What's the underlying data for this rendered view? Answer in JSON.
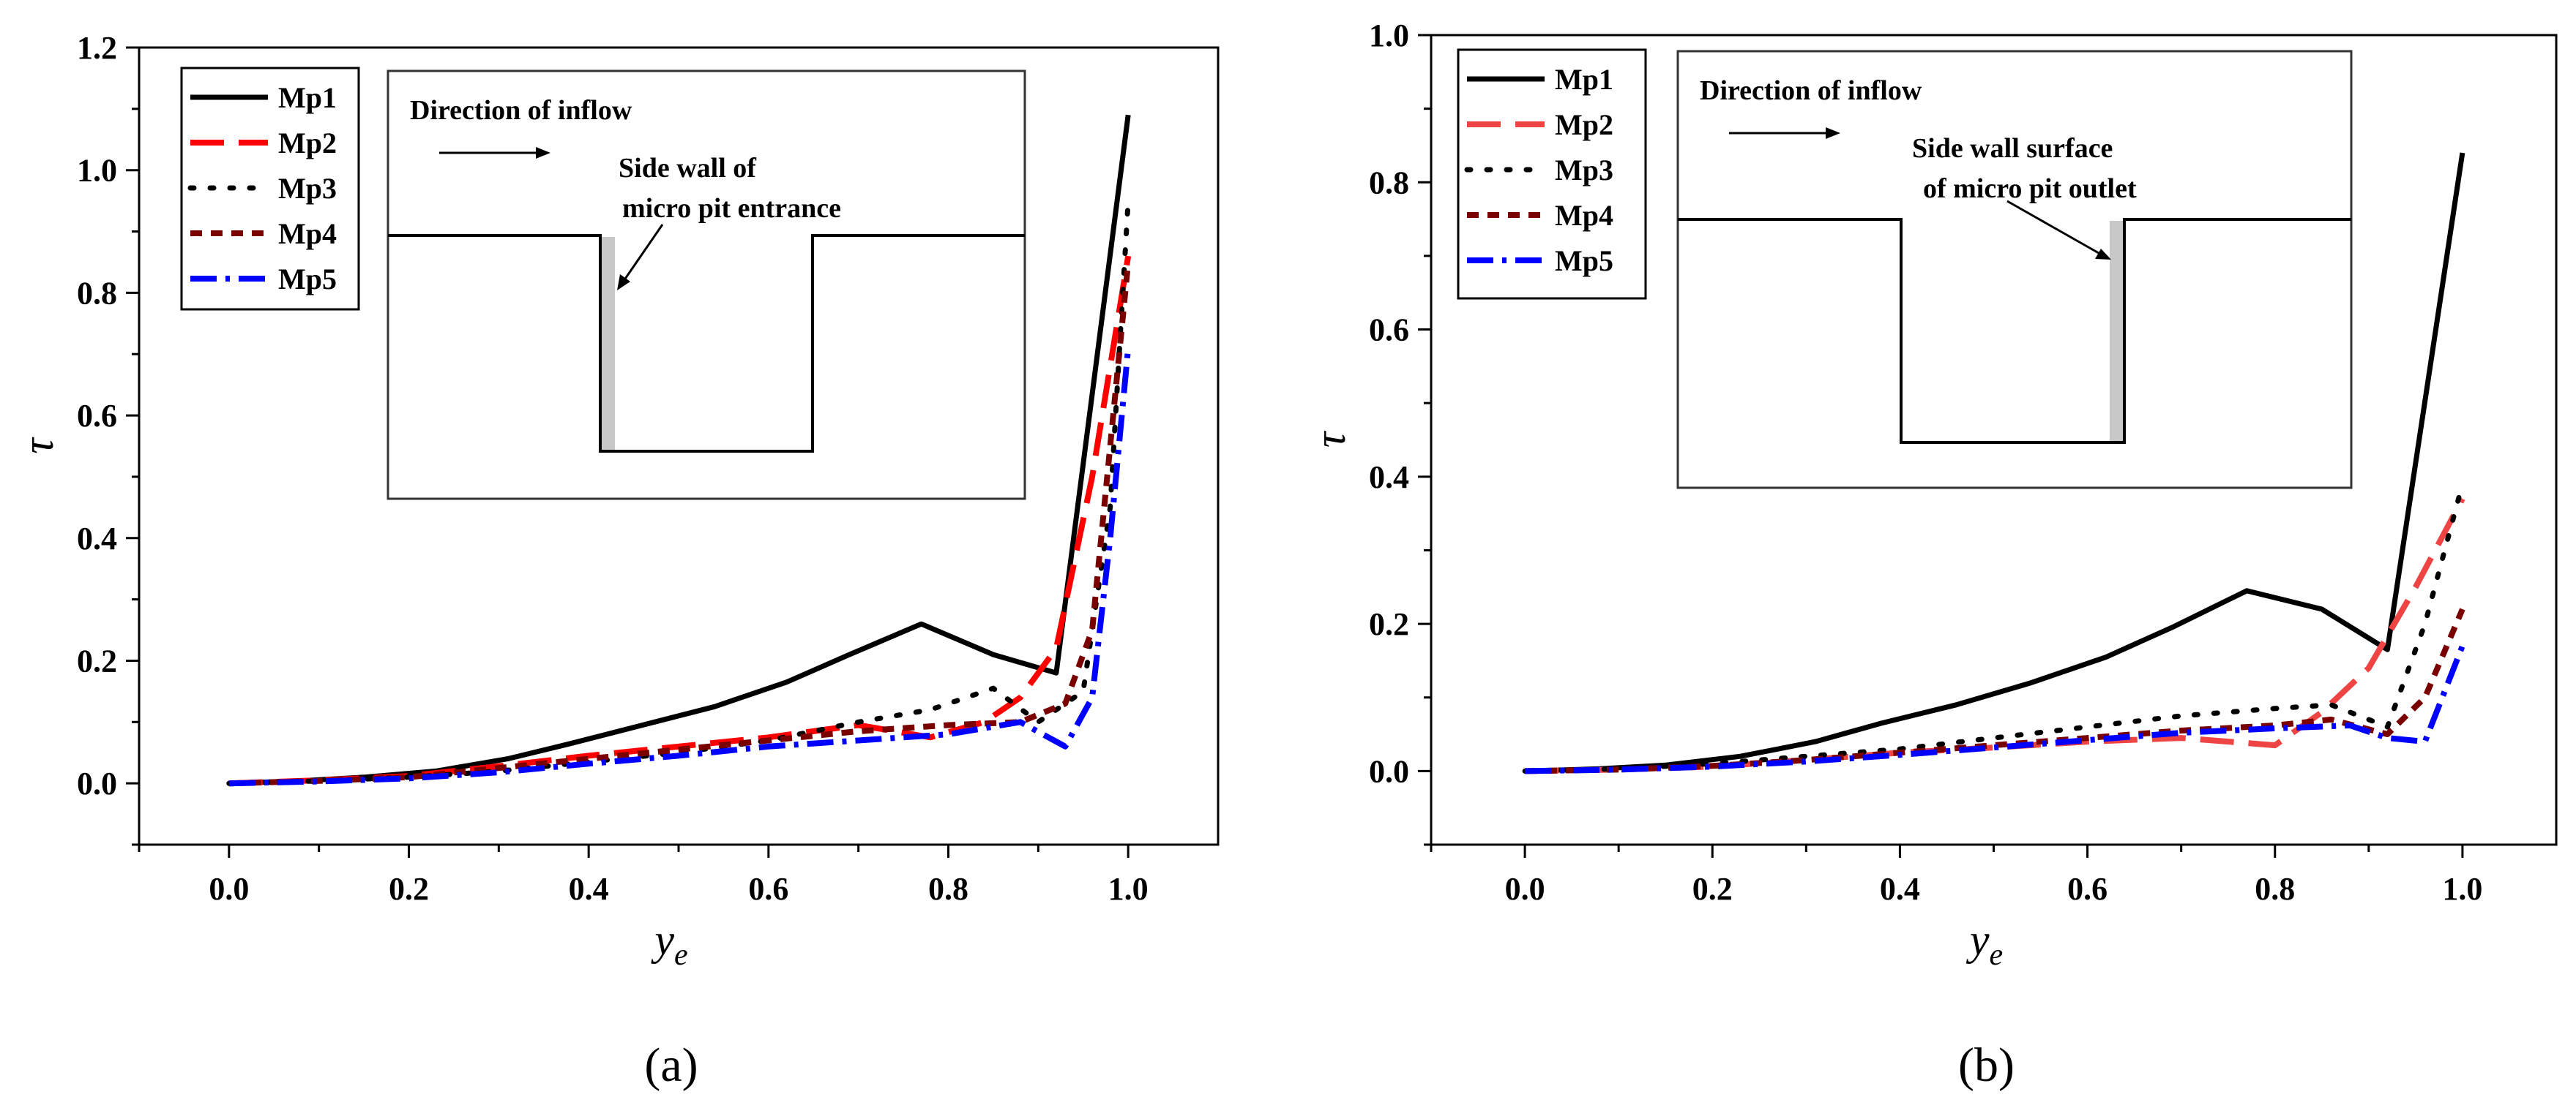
{
  "chart_data": [
    {
      "type": "line",
      "panel_label": "(a)",
      "xlabel": "y",
      "xlabel_sub": "e",
      "ylabel": "τ",
      "xlim": [
        -0.1,
        1.1
      ],
      "ylim": [
        -0.1,
        1.2
      ],
      "xticks": [
        "0.0",
        "0.2",
        "0.4",
        "0.6",
        "0.8",
        "1.0"
      ],
      "yticks": [
        "0.0",
        "0.2",
        "0.4",
        "0.6",
        "0.8",
        "1.0",
        "1.2"
      ],
      "legend_position": "top-left",
      "series": [
        {
          "name": "Mp1",
          "color": "#000000",
          "style": "solid",
          "x": [
            0,
            0.08,
            0.15,
            0.23,
            0.31,
            0.38,
            0.46,
            0.54,
            0.62,
            0.69,
            0.77,
            0.85,
            0.92,
            1.0
          ],
          "y": [
            0.0,
            0.004,
            0.01,
            0.02,
            0.04,
            0.065,
            0.095,
            0.125,
            0.165,
            0.21,
            0.26,
            0.21,
            0.18,
            1.09
          ]
        },
        {
          "name": "Mp2",
          "color": "#ff0000",
          "style": "dash",
          "x": [
            0,
            0.1,
            0.2,
            0.3,
            0.4,
            0.5,
            0.6,
            0.7,
            0.78,
            0.84,
            0.88,
            0.92,
            0.96,
            1.0
          ],
          "y": [
            0.0,
            0.005,
            0.012,
            0.028,
            0.045,
            0.06,
            0.075,
            0.095,
            0.075,
            0.1,
            0.14,
            0.22,
            0.5,
            0.86
          ]
        },
        {
          "name": "Mp3",
          "color": "#000000",
          "style": "dot",
          "x": [
            0,
            0.1,
            0.2,
            0.3,
            0.4,
            0.5,
            0.6,
            0.7,
            0.78,
            0.85,
            0.9,
            0.95,
            0.98,
            1.0
          ],
          "y": [
            0.0,
            0.004,
            0.01,
            0.02,
            0.035,
            0.05,
            0.07,
            0.1,
            0.12,
            0.155,
            0.1,
            0.15,
            0.45,
            0.95
          ]
        },
        {
          "name": "Mp4",
          "color": "#7a0000",
          "style": "shortdash",
          "x": [
            0,
            0.1,
            0.2,
            0.3,
            0.4,
            0.5,
            0.6,
            0.7,
            0.8,
            0.88,
            0.93,
            0.96,
            1.0
          ],
          "y": [
            0.0,
            0.004,
            0.01,
            0.025,
            0.04,
            0.055,
            0.07,
            0.085,
            0.095,
            0.1,
            0.13,
            0.25,
            0.85
          ]
        },
        {
          "name": "Mp5",
          "color": "#0000ff",
          "style": "dashdot",
          "x": [
            0,
            0.1,
            0.2,
            0.3,
            0.4,
            0.5,
            0.6,
            0.7,
            0.8,
            0.88,
            0.93,
            0.96,
            0.98,
            1.0
          ],
          "y": [
            0.0,
            0.003,
            0.008,
            0.018,
            0.032,
            0.045,
            0.06,
            0.07,
            0.08,
            0.1,
            0.06,
            0.14,
            0.4,
            0.71
          ]
        }
      ],
      "inset": {
        "direction_text": "Direction of inflow",
        "label_line1": "Side wall of",
        "label_line2": "micro pit entrance",
        "highlight_side": "left"
      }
    },
    {
      "type": "line",
      "panel_label": "(b)",
      "xlabel": "y",
      "xlabel_sub": "e",
      "ylabel": "τ",
      "xlim": [
        -0.1,
        1.1
      ],
      "ylim": [
        -0.1,
        1.0
      ],
      "xticks": [
        "0.0",
        "0.2",
        "0.4",
        "0.6",
        "0.8",
        "1.0"
      ],
      "yticks": [
        "0.0",
        "0.2",
        "0.4",
        "0.6",
        "0.8",
        "1.0"
      ],
      "legend_position": "top-left",
      "series": [
        {
          "name": "Mp1",
          "color": "#000000",
          "style": "solid",
          "x": [
            0,
            0.08,
            0.15,
            0.23,
            0.31,
            0.38,
            0.46,
            0.54,
            0.62,
            0.69,
            0.77,
            0.85,
            0.92,
            1.0
          ],
          "y": [
            0.0,
            0.003,
            0.008,
            0.02,
            0.04,
            0.065,
            0.09,
            0.12,
            0.155,
            0.195,
            0.245,
            0.22,
            0.165,
            0.84
          ]
        },
        {
          "name": "Mp2",
          "color": "#ee4444",
          "style": "dash",
          "x": [
            0,
            0.1,
            0.2,
            0.3,
            0.4,
            0.5,
            0.6,
            0.7,
            0.75,
            0.8,
            0.85,
            0.9,
            0.95,
            1.0
          ],
          "y": [
            0.0,
            0.002,
            0.006,
            0.015,
            0.025,
            0.032,
            0.04,
            0.045,
            0.04,
            0.035,
            0.08,
            0.14,
            0.25,
            0.37
          ]
        },
        {
          "name": "Mp3",
          "color": "#000000",
          "style": "dot",
          "x": [
            0,
            0.1,
            0.2,
            0.3,
            0.4,
            0.5,
            0.6,
            0.7,
            0.8,
            0.86,
            0.92,
            0.96,
            1.0
          ],
          "y": [
            0.0,
            0.003,
            0.01,
            0.02,
            0.03,
            0.045,
            0.06,
            0.075,
            0.085,
            0.09,
            0.06,
            0.2,
            0.39
          ]
        },
        {
          "name": "Mp4",
          "color": "#7a0000",
          "style": "shortdash",
          "x": [
            0,
            0.1,
            0.2,
            0.3,
            0.4,
            0.5,
            0.6,
            0.7,
            0.8,
            0.86,
            0.92,
            0.96,
            1.0
          ],
          "y": [
            0.0,
            0.002,
            0.007,
            0.015,
            0.025,
            0.035,
            0.045,
            0.055,
            0.062,
            0.07,
            0.05,
            0.1,
            0.22
          ]
        },
        {
          "name": "Mp5",
          "color": "#0000ff",
          "style": "dashdot",
          "x": [
            0,
            0.1,
            0.2,
            0.3,
            0.4,
            0.5,
            0.6,
            0.7,
            0.8,
            0.88,
            0.92,
            0.96,
            1.0
          ],
          "y": [
            0.0,
            0.002,
            0.006,
            0.013,
            0.022,
            0.032,
            0.042,
            0.052,
            0.058,
            0.062,
            0.045,
            0.04,
            0.17
          ]
        }
      ],
      "inset": {
        "direction_text": "Direction of inflow",
        "label_line1": "Side wall surface",
        "label_line2": "of micro pit outlet",
        "highlight_side": "right"
      }
    }
  ]
}
